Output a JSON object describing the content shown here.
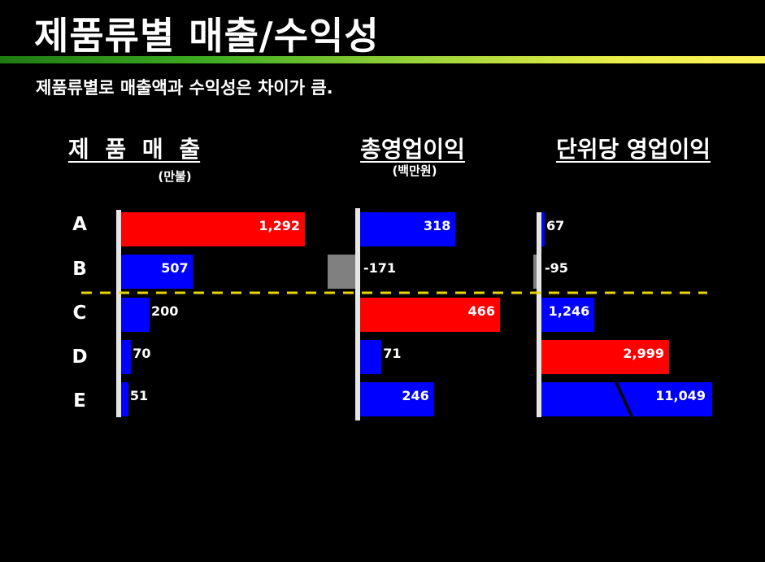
{
  "slide": {
    "title": "제품류별 매출/수익성",
    "subtitle": "제품류별로 매출액과 수익성은 차이가 큼."
  },
  "chart_data": [
    {
      "type": "bar",
      "orientation": "horizontal",
      "title": "제 품 매 출",
      "unit": "(만불)",
      "categories": [
        "A",
        "B",
        "C",
        "D",
        "E"
      ],
      "values": [
        1292,
        507,
        200,
        70,
        51
      ],
      "value_labels": [
        "1,292",
        "507",
        "200",
        "70",
        "51"
      ],
      "bar_colors": [
        "#ff0000",
        "#0000ff",
        "#0000ff",
        "#0000ff",
        "#0000ff"
      ]
    },
    {
      "type": "bar",
      "orientation": "horizontal",
      "title": "총영업이익",
      "unit": "(백만원)",
      "categories": [
        "A",
        "B",
        "C",
        "D",
        "E"
      ],
      "values": [
        318,
        -171,
        466,
        71,
        246
      ],
      "value_labels": [
        "318",
        "-171",
        "466",
        "71",
        "246"
      ],
      "bar_colors": [
        "#0000ff",
        "#808080",
        "#ff0000",
        "#0000ff",
        "#0000ff"
      ]
    },
    {
      "type": "bar",
      "orientation": "horizontal",
      "title": "단위당 영업이익",
      "unit": "",
      "categories": [
        "A",
        "B",
        "C",
        "D",
        "E"
      ],
      "values": [
        67,
        -95,
        1246,
        2999,
        11049
      ],
      "value_labels": [
        "67",
        "-95",
        "1,246",
        "2,999",
        "11,049"
      ],
      "bar_colors": [
        "#0000ff",
        "#808080",
        "#0000ff",
        "#ff0000",
        "#0000ff"
      ],
      "broken_axis_category": "E"
    }
  ],
  "divider_color": "#e8d400"
}
